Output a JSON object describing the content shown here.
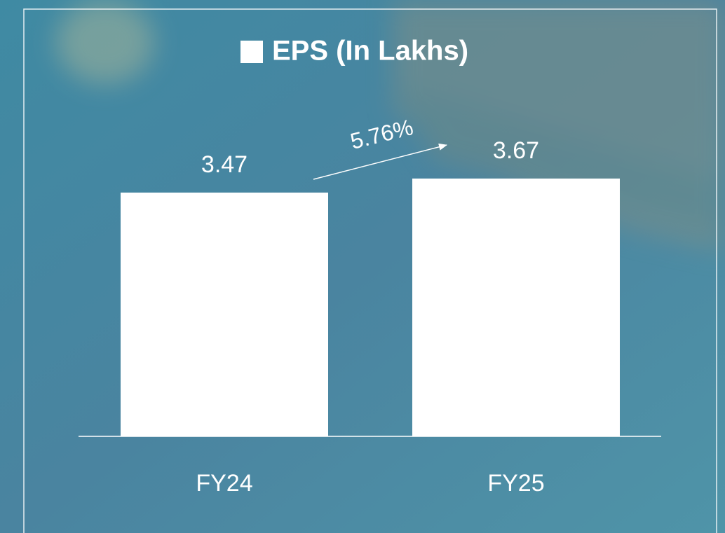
{
  "chart_data": {
    "type": "bar",
    "title": "EPS (In Lakhs)",
    "color": "#ffffff",
    "categories": [
      "FY24",
      "FY25"
    ],
    "values": [
      3.47,
      3.67
    ],
    "annotation": "5.76%"
  }
}
